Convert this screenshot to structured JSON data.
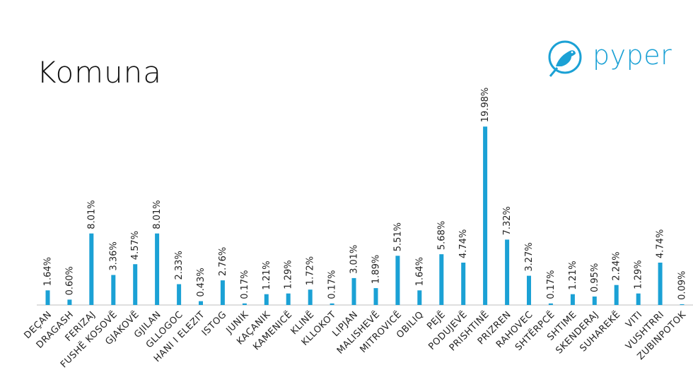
{
  "title": "Komuna",
  "logo": {
    "text": "pyper",
    "icon": "bird-icon",
    "color": "#1ba1d5"
  },
  "colors": {
    "bar": "#1ba1d5",
    "axis": "#bfbfbf",
    "text": "#222222"
  },
  "chart_data": {
    "type": "bar",
    "title": "Komuna",
    "xlabel": "",
    "ylabel": "",
    "grid": false,
    "categories": [
      "DEÇAN",
      "DRAGASH",
      "FERIZAJ",
      "FUSHË KOSOVË",
      "GJAKOVË",
      "GJILAN",
      "GLLOGOC",
      "HANI I ELEZIT",
      "ISTOG",
      "JUNIK",
      "KAÇANIK",
      "KAMENICË",
      "KLINË",
      "KLLOKOT",
      "LIPJAN",
      "MALISHEVË",
      "MITROVICË",
      "OBILIQ",
      "PEJË",
      "PODUJEVË",
      "PRISHTINË",
      "PRIZREN",
      "RAHOVEC",
      "SHTËRPCË",
      "SHTIME",
      "SKENDERAJ",
      "SUHAREKË",
      "VITI",
      "VUSHTRRI",
      "ZUBINPOTOK"
    ],
    "values": [
      1.64,
      0.6,
      8.01,
      3.36,
      4.57,
      8.01,
      2.33,
      0.43,
      2.76,
      0.17,
      1.21,
      1.29,
      1.72,
      0.17,
      3.01,
      1.89,
      5.51,
      1.64,
      5.68,
      4.74,
      19.98,
      7.32,
      3.27,
      0.17,
      1.21,
      0.95,
      2.24,
      1.29,
      4.74,
      0.09
    ],
    "labels": [
      "1.64%",
      "0.60%",
      "8.01%",
      "3.36%",
      "4.57%",
      "8.01%",
      "2.33%",
      "0.43%",
      "2.76%",
      "0.17%",
      "1.21%",
      "1.29%",
      "1.72%",
      "0.17%",
      "3.01%",
      "1.89%",
      "5.51%",
      "1.64%",
      "5.68%",
      "4.74%",
      "19.98%",
      "7.32%",
      "3.27%",
      "0.17%",
      "1.21%",
      "0.95%",
      "2.24%",
      "1.29%",
      "4.74%",
      "0.09%"
    ],
    "ylim": [
      0,
      20
    ]
  }
}
